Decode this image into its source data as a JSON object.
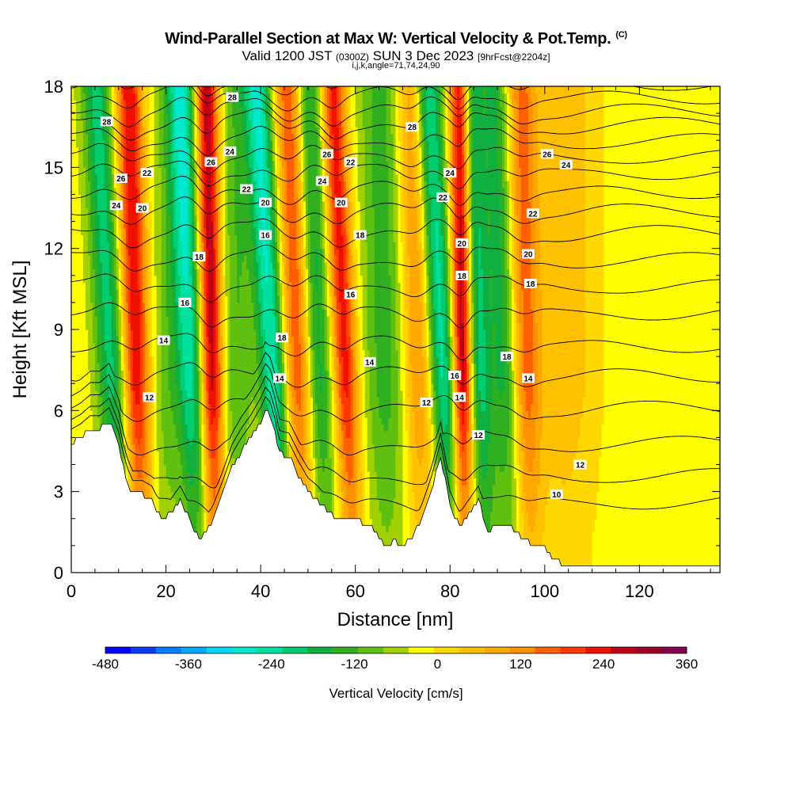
{
  "header": {
    "title": "Wind-Parallel Section at Max W: Vertical Velocity & Pot.Temp.",
    "title_tag": "(C)",
    "valid_prefix": "Valid 1200 JST",
    "valid_utc": "(0300Z)",
    "valid_date": "SUN 3 Dec 2023",
    "forecast_tag": "[9hrFcst@2204z]",
    "index_line": "i,j,k,angle=71,74,24,90"
  },
  "chart_data": {
    "type": "heatmap",
    "xlabel": "Distance [nm]",
    "ylabel": "Height [Kft MSL]",
    "xlim": [
      0,
      137
    ],
    "ylim": [
      0,
      18
    ],
    "x_ticks": [
      0,
      20,
      40,
      60,
      80,
      100,
      120
    ],
    "y_ticks": [
      0,
      3,
      6,
      9,
      12,
      15,
      18
    ],
    "colorbar": {
      "label": "Vertical Velocity [cm/s]",
      "range": [
        -480,
        360
      ],
      "step": 40,
      "tick_values": [
        -480,
        -360,
        -240,
        -120,
        0,
        120,
        240,
        360
      ],
      "colors": [
        "#0000ff",
        "#0a3cf0",
        "#0080ff",
        "#00aaff",
        "#00d8ff",
        "#00e8d0",
        "#00e0a0",
        "#00cc70",
        "#10b040",
        "#30b020",
        "#60c010",
        "#a0d000",
        "#ffff00",
        "#ffd800",
        "#ffc000",
        "#ffa800",
        "#ff9000",
        "#ff6000",
        "#ff3800",
        "#f01000",
        "#c00018",
        "#a0002a",
        "#860050"
      ]
    },
    "velocity_bands": [
      {
        "x": 8,
        "slope": -0.3,
        "w": -200,
        "sigma": 2.2
      },
      {
        "x": 13.5,
        "slope": -0.15,
        "w": 300,
        "sigma": 2.0
      },
      {
        "x": 21,
        "slope": 0.1,
        "w": -90,
        "sigma": 2.8
      },
      {
        "x": 25,
        "slope": -0.2,
        "w": -220,
        "sigma": 2.0
      },
      {
        "x": 29.5,
        "slope": -0.1,
        "w": 340,
        "sigma": 1.7
      },
      {
        "x": 35,
        "slope": 0.0,
        "w": -100,
        "sigma": 2.5
      },
      {
        "x": 42,
        "slope": -0.3,
        "w": -260,
        "sigma": 2.0
      },
      {
        "x": 47.5,
        "slope": -0.2,
        "w": 220,
        "sigma": 2.0
      },
      {
        "x": 52,
        "slope": -0.2,
        "w": -160,
        "sigma": 2.0
      },
      {
        "x": 57.5,
        "slope": -0.25,
        "w": 280,
        "sigma": 1.8
      },
      {
        "x": 66,
        "slope": -0.1,
        "w": -120,
        "sigma": 3.0
      },
      {
        "x": 73,
        "slope": -0.15,
        "w": 150,
        "sigma": 2.2
      },
      {
        "x": 78,
        "slope": -0.3,
        "w": -240,
        "sigma": 2.0
      },
      {
        "x": 82.5,
        "slope": -0.05,
        "w": 360,
        "sigma": 1.5
      },
      {
        "x": 86,
        "slope": -0.2,
        "w": -200,
        "sigma": 1.8
      },
      {
        "x": 91,
        "slope": -0.2,
        "w": -150,
        "sigma": 2.0
      },
      {
        "x": 96,
        "slope": -0.1,
        "w": 180,
        "sigma": 2.0
      },
      {
        "x": 104,
        "slope": 0.0,
        "w": 90,
        "sigma": 5.0
      }
    ],
    "terrain": {
      "x": [
        0,
        2,
        4,
        6,
        8,
        10,
        11,
        12,
        13,
        15,
        17,
        19,
        21,
        23,
        25,
        26,
        27,
        28,
        30,
        32,
        34,
        36,
        38,
        40,
        41,
        42,
        43,
        44,
        46,
        48,
        50,
        52,
        54,
        56,
        58,
        60,
        62,
        64,
        66,
        67,
        68,
        70,
        72,
        74,
        76,
        78,
        80,
        82,
        84,
        86,
        88,
        90,
        92,
        94,
        96,
        98,
        100,
        102,
        104,
        106,
        110,
        120,
        130,
        137
      ],
      "height": [
        4.8,
        5.0,
        5.3,
        5.3,
        5.6,
        4.7,
        3.9,
        3.3,
        2.9,
        2.9,
        2.7,
        2.0,
        2.2,
        2.7,
        2.0,
        1.5,
        1.3,
        1.4,
        2.0,
        2.9,
        3.9,
        4.5,
        5.0,
        5.6,
        6.0,
        5.8,
        5.2,
        4.4,
        4.3,
        3.6,
        3.0,
        2.7,
        2.3,
        2.0,
        2.0,
        2.0,
        1.8,
        1.6,
        1.0,
        1.0,
        1.2,
        1.0,
        1.3,
        2.0,
        3.0,
        4.3,
        2.5,
        1.7,
        2.2,
        2.7,
        1.5,
        1.8,
        1.8,
        1.5,
        1.2,
        1.0,
        0.9,
        0.5,
        0.3,
        0.3,
        0.3,
        0.3,
        0.3,
        0.3
      ]
    },
    "theta_contours": {
      "levels": [
        10,
        11,
        12,
        13,
        14,
        15,
        16,
        17,
        18,
        19,
        20,
        21,
        22,
        23,
        24,
        25,
        26,
        27,
        28
      ],
      "base_height_kft": [
        2.6,
        3.6,
        4.8,
        6.1,
        7.3,
        8.4,
        9.6,
        10.6,
        11.6,
        12.6,
        13.4,
        14.1,
        14.8,
        15.4,
        16.0,
        16.6,
        17.1,
        17.6,
        18.1
      ],
      "wave_amplitude_kft": 0.7,
      "labels": [
        {
          "text": "28",
          "x": 7.5,
          "y": 16.7
        },
        {
          "text": "26",
          "x": 10.5,
          "y": 14.6
        },
        {
          "text": "24",
          "x": 9.5,
          "y": 13.6
        },
        {
          "text": "22",
          "x": 16.0,
          "y": 14.8
        },
        {
          "text": "20",
          "x": 15.0,
          "y": 13.5
        },
        {
          "text": "16",
          "x": 24.0,
          "y": 10.0
        },
        {
          "text": "14",
          "x": 19.5,
          "y": 8.6
        },
        {
          "text": "12",
          "x": 16.5,
          "y": 6.5
        },
        {
          "text": "28",
          "x": 34.0,
          "y": 17.6
        },
        {
          "text": "26",
          "x": 29.5,
          "y": 15.2
        },
        {
          "text": "24",
          "x": 33.5,
          "y": 15.6
        },
        {
          "text": "22",
          "x": 37.0,
          "y": 14.2
        },
        {
          "text": "20",
          "x": 41.0,
          "y": 13.7
        },
        {
          "text": "18",
          "x": 27.0,
          "y": 11.7
        },
        {
          "text": "16",
          "x": 41.0,
          "y": 12.5
        },
        {
          "text": "18",
          "x": 44.5,
          "y": 8.7
        },
        {
          "text": "14",
          "x": 44.0,
          "y": 7.2
        },
        {
          "text": "26",
          "x": 54.0,
          "y": 15.5
        },
        {
          "text": "22",
          "x": 59.0,
          "y": 15.2
        },
        {
          "text": "24",
          "x": 53.0,
          "y": 14.5
        },
        {
          "text": "20",
          "x": 57.0,
          "y": 13.7
        },
        {
          "text": "18",
          "x": 61.0,
          "y": 12.5
        },
        {
          "text": "16",
          "x": 59.0,
          "y": 10.3
        },
        {
          "text": "14",
          "x": 63.0,
          "y": 7.8
        },
        {
          "text": "28",
          "x": 72.0,
          "y": 16.5
        },
        {
          "text": "24",
          "x": 80.0,
          "y": 14.8
        },
        {
          "text": "22",
          "x": 78.5,
          "y": 13.9
        },
        {
          "text": "20",
          "x": 82.5,
          "y": 12.2
        },
        {
          "text": "18",
          "x": 82.5,
          "y": 11.0
        },
        {
          "text": "16",
          "x": 81.0,
          "y": 7.3
        },
        {
          "text": "14",
          "x": 82.0,
          "y": 6.5
        },
        {
          "text": "12",
          "x": 75.0,
          "y": 6.3
        },
        {
          "text": "12",
          "x": 86.0,
          "y": 5.1
        },
        {
          "text": "18",
          "x": 92.0,
          "y": 8.0
        },
        {
          "text": "14",
          "x": 96.5,
          "y": 7.2
        },
        {
          "text": "18",
          "x": 97.0,
          "y": 10.7
        },
        {
          "text": "20",
          "x": 96.5,
          "y": 11.8
        },
        {
          "text": "22",
          "x": 97.5,
          "y": 13.3
        },
        {
          "text": "26",
          "x": 100.5,
          "y": 15.5
        },
        {
          "text": "24",
          "x": 104.5,
          "y": 15.1
        },
        {
          "text": "12",
          "x": 107.5,
          "y": 4.0
        },
        {
          "text": "10",
          "x": 102.5,
          "y": 2.9
        }
      ]
    },
    "grid": false,
    "legend": "bottom"
  }
}
